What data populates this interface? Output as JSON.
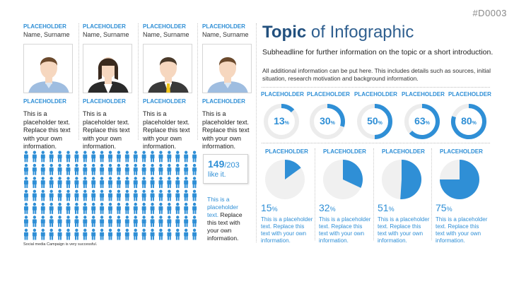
{
  "slide_id": "#D0003",
  "people": [
    {
      "label": "PLACEHOLDER",
      "name": "Name, Surname",
      "photo": "man-casual",
      "label2": "PLACEHOLDER",
      "text": "This is a placeholder text. Replace this text with your own information."
    },
    {
      "label": "PLACEHOLDER",
      "name": "Name, Surname",
      "photo": "woman-business",
      "label2": "PLACEHOLDER",
      "text": "This is a placeholder text. Replace this text with your own information."
    },
    {
      "label": "PLACEHOLDER",
      "name": "Name, Surname",
      "photo": "man-suit-yellow-tie",
      "label2": "PLACEHOLDER",
      "text": "This is a placeholder text. Replace this text with your own information."
    },
    {
      "label": "PLACEHOLDER",
      "name": "Name, Surname",
      "photo": "man-casual",
      "label2": "PLACEHOLDER",
      "text": "This is a placeholder text. Replace this text with your own information."
    }
  ],
  "title_bold": "Topic",
  "title_rest": " of Infographic",
  "subheadline": "Subheadline for further information on the topic or a short introduction.",
  "additional": "All additional information can be put here. This includes details such as sources, initial situation, research motivation and background information.",
  "donuts": [
    {
      "label": "PLACEHOLDER",
      "value": 13,
      "unit": "%"
    },
    {
      "label": "PLACEHOLDER",
      "value": 30,
      "unit": "%"
    },
    {
      "label": "PLACEHOLDER",
      "value": 50,
      "unit": "%"
    },
    {
      "label": "PLACEHOLDER",
      "value": 63,
      "unit": "%"
    },
    {
      "label": "PLACEHOLDER",
      "value": 80,
      "unit": "%"
    }
  ],
  "pies": [
    {
      "label": "PLACEHOLDER",
      "value": 15,
      "unit": "%",
      "text": "This is a placeholder text. Replace this text with your own information."
    },
    {
      "label": "PLACEHOLDER",
      "value": 32,
      "unit": "%",
      "text": "This is a placeholder text. Replace this text with your own information."
    },
    {
      "label": "PLACEHOLDER",
      "value": 51,
      "unit": "%",
      "text": "This is a placeholder text. Replace this text with your own information."
    },
    {
      "label": "PLACEHOLDER",
      "value": 75,
      "unit": "%",
      "text": "This is a placeholder text. Replace this text with your own information."
    }
  ],
  "figures": {
    "liked": 149,
    "total": 203,
    "total_label": "/203",
    "like_text": "like it.",
    "per_row": 21
  },
  "figures_text_blue": "This is a placeholder text.",
  "figures_text_rest": " Replace this text with your own information.",
  "caption": "Social media Campaign is very successful.",
  "colors": {
    "accent": "#2f8fd6",
    "title": "#22507e",
    "track": "#ececec",
    "pie_bg": "#f0f0f0",
    "figure_off": "#c9c9c9"
  }
}
